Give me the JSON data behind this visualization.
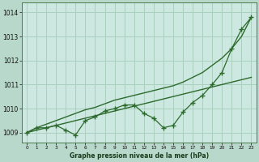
{
  "x": [
    0,
    1,
    2,
    3,
    4,
    5,
    6,
    7,
    8,
    9,
    10,
    11,
    12,
    13,
    14,
    15,
    16,
    17,
    18,
    19,
    20,
    21,
    22,
    23
  ],
  "line_marker": [
    1009.0,
    1009.2,
    1009.2,
    1009.3,
    1009.1,
    1008.9,
    1009.5,
    1009.65,
    1009.9,
    1010.0,
    1010.15,
    1010.15,
    1009.8,
    1009.6,
    1009.2,
    1009.3,
    1009.85,
    1010.25,
    1010.55,
    1011.0,
    1011.5,
    1012.5,
    1013.3,
    1013.8
  ],
  "line_straight1": [
    1009.0,
    1009.1,
    1009.2,
    1009.3,
    1009.4,
    1009.5,
    1009.6,
    1009.7,
    1009.8,
    1009.9,
    1010.0,
    1010.1,
    1010.2,
    1010.3,
    1010.4,
    1010.5,
    1010.6,
    1010.7,
    1010.8,
    1010.9,
    1011.0,
    1011.1,
    1011.2,
    1011.3
  ],
  "line_straight2": [
    1009.0,
    1009.2,
    1009.35,
    1009.5,
    1009.65,
    1009.8,
    1009.95,
    1010.05,
    1010.2,
    1010.35,
    1010.45,
    1010.55,
    1010.65,
    1010.75,
    1010.85,
    1010.95,
    1011.1,
    1011.3,
    1011.5,
    1011.8,
    1012.1,
    1012.5,
    1013.0,
    1013.8
  ],
  "line_color": "#2d6a2d",
  "bg_color": "#cce8e0",
  "grid_color": "#aad0c0",
  "outer_bg": "#b8d8cc",
  "title": "Graphe pression niveau de la mer (hPa)",
  "ylim": [
    1008.6,
    1014.4
  ],
  "xlim": [
    -0.5,
    23.5
  ],
  "yticks": [
    1009,
    1010,
    1011,
    1012,
    1013,
    1014
  ],
  "xticks": [
    0,
    1,
    2,
    3,
    4,
    5,
    6,
    7,
    8,
    9,
    10,
    11,
    12,
    13,
    14,
    15,
    16,
    17,
    18,
    19,
    20,
    21,
    22,
    23
  ]
}
